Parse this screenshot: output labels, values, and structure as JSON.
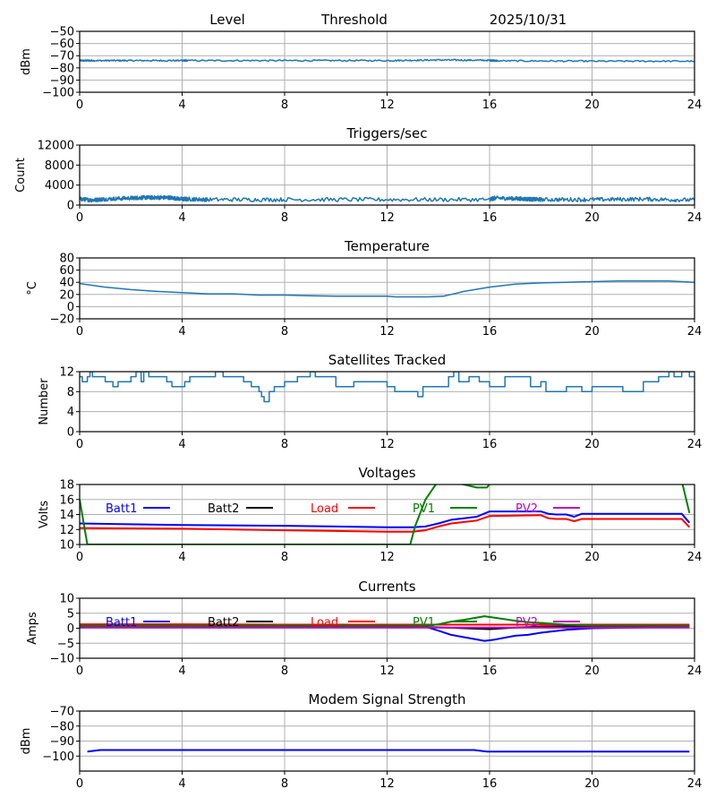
{
  "header": {
    "level_label": "Level",
    "threshold_label": "Threshold",
    "date": "2025/10/31"
  },
  "colors": {
    "series_default": "#1f77b4",
    "batt1": "#0000ff",
    "batt2": "#000000",
    "load": "#ff0000",
    "pv1": "#008000",
    "pv2": "#bf00bf",
    "grid": "#b0b0b0"
  },
  "chart_data": [
    {
      "id": "level",
      "type": "line",
      "title": "",
      "xlabel": "",
      "ylabel": "dBm",
      "xlim": [
        0,
        24
      ],
      "ylim": [
        -100,
        -50
      ],
      "xticks": [
        "0",
        "4",
        "8",
        "12",
        "16",
        "20",
        "24"
      ],
      "yticks": [
        {
          "v": -50,
          "label": "−50"
        },
        {
          "v": -60,
          "label": "−60"
        },
        {
          "v": -70,
          "label": "−70"
        },
        {
          "v": -80,
          "label": "−80"
        },
        {
          "v": -90,
          "label": "−90"
        },
        {
          "v": -100,
          "label": "−100"
        }
      ],
      "grid": true,
      "series": [
        {
          "name": "Level",
          "color_key": "series_default",
          "noise": 0.6,
          "x": [
            0,
            0.5,
            2,
            4,
            4.2,
            8,
            12,
            14,
            16,
            16.3,
            20,
            24
          ],
          "y": [
            -74,
            -74,
            -74,
            -74,
            -74,
            -74,
            -74,
            -73.5,
            -73.8,
            -74.2,
            -74.5,
            -74.5
          ]
        }
      ]
    },
    {
      "id": "triggers",
      "type": "line",
      "title": "Triggers/sec",
      "xlabel": "",
      "ylabel": "Count",
      "xlim": [
        0,
        24
      ],
      "ylim": [
        0,
        12000
      ],
      "xticks": [
        "0",
        "4",
        "8",
        "12",
        "16",
        "20",
        "24"
      ],
      "yticks": [
        {
          "v": 0,
          "label": "0"
        },
        {
          "v": 4000,
          "label": "4000"
        },
        {
          "v": 8000,
          "label": "8000"
        },
        {
          "v": 12000,
          "label": "12000"
        }
      ],
      "grid": true,
      "series": [
        {
          "name": "Triggers",
          "color_key": "series_default",
          "noise": 400,
          "x": [
            0,
            0.5,
            1,
            2,
            2.5,
            3,
            3.5,
            4,
            4.2,
            5,
            8,
            12,
            16,
            16.2,
            17,
            17.5,
            18,
            20,
            22,
            24
          ],
          "y": [
            1200,
            1000,
            1200,
            1400,
            1500,
            1500,
            1500,
            1200,
            1200,
            1100,
            1100,
            1100,
            1100,
            1400,
            1300,
            1200,
            1100,
            1100,
            1200,
            1000
          ]
        }
      ]
    },
    {
      "id": "temperature",
      "type": "line",
      "title": "Temperature",
      "xlabel": "",
      "ylabel": "°C",
      "xlim": [
        0,
        24
      ],
      "ylim": [
        -20,
        80
      ],
      "xticks": [
        "0",
        "4",
        "8",
        "12",
        "16",
        "20",
        "24"
      ],
      "yticks": [
        {
          "v": -20,
          "label": "−20"
        },
        {
          "v": 0,
          "label": "0"
        },
        {
          "v": 20,
          "label": "20"
        },
        {
          "v": 40,
          "label": "40"
        },
        {
          "v": 60,
          "label": "60"
        },
        {
          "v": 80,
          "label": "80"
        }
      ],
      "grid": true,
      "series": [
        {
          "name": "Temperature",
          "color_key": "series_default",
          "noise": 0,
          "x": [
            0,
            1,
            2,
            3,
            4,
            5,
            6,
            7,
            8,
            9,
            10,
            11,
            12,
            12.3,
            13,
            13.6,
            14.2,
            15,
            16,
            17,
            18,
            19,
            20,
            21,
            22,
            23,
            23.5,
            24
          ],
          "y": [
            38,
            32,
            28,
            25,
            23,
            21,
            21,
            19,
            19,
            18,
            17,
            17,
            17,
            16,
            16,
            16,
            17,
            25,
            32,
            37,
            39,
            40,
            41,
            42,
            42,
            42,
            41,
            40
          ]
        }
      ]
    },
    {
      "id": "satellites",
      "type": "line",
      "title": "Satellites Tracked",
      "xlabel": "",
      "ylabel": "Number",
      "xlim": [
        0,
        24
      ],
      "ylim": [
        0,
        12
      ],
      "xticks": [
        "0",
        "4",
        "8",
        "12",
        "16",
        "20",
        "24"
      ],
      "yticks": [
        {
          "v": 0,
          "label": "0"
        },
        {
          "v": 4,
          "label": "4"
        },
        {
          "v": 8,
          "label": "8"
        },
        {
          "v": 12,
          "label": "12"
        }
      ],
      "grid": true,
      "step": true,
      "series": [
        {
          "name": "Satellites",
          "color_key": "series_default",
          "noise": 0,
          "x": [
            0,
            0.1,
            0.3,
            0.4,
            0.5,
            1,
            1.3,
            1.5,
            1.7,
            2,
            2.2,
            2.4,
            2.5,
            2.7,
            3.4,
            3.6,
            4.1,
            4.3,
            4.6,
            5.0,
            5.3,
            5.6,
            6.0,
            6.4,
            6.7,
            7.0,
            7.1,
            7.2,
            7.4,
            7.6,
            8.0,
            8.5,
            9.0,
            9.2,
            9.6,
            10.0,
            10.7,
            11.2,
            12.0,
            12.3,
            13.0,
            13.2,
            13.4,
            14.0,
            14.4,
            14.6,
            14.8,
            15.2,
            15.6,
            16.0,
            16.6,
            17.2,
            17.6,
            18.0,
            18.2,
            19.0,
            19.6,
            20.0,
            20.5,
            21.2,
            22.0,
            22.4,
            22.6,
            23.0,
            23.2,
            23.5,
            23.8,
            24
          ],
          "y": [
            11,
            10,
            11,
            12,
            11,
            10,
            9,
            10,
            10,
            11,
            12,
            10,
            12,
            11,
            10,
            9,
            10,
            11,
            11,
            11,
            12,
            11,
            11,
            10,
            9,
            8,
            7,
            6,
            8,
            9,
            10,
            11,
            12,
            11,
            11,
            9,
            10,
            10,
            9,
            8,
            8,
            7,
            9,
            9,
            11,
            12,
            10,
            11,
            10,
            9,
            11,
            11,
            9,
            10,
            8,
            9,
            8,
            9,
            9,
            8,
            10,
            10,
            11,
            12,
            11,
            12,
            11,
            11
          ]
        }
      ]
    },
    {
      "id": "voltages",
      "type": "line",
      "title": "Voltages",
      "xlabel": "",
      "ylabel": "Volts",
      "xlim": [
        0,
        24
      ],
      "ylim": [
        10,
        18
      ],
      "xticks": [
        "0",
        "4",
        "8",
        "12",
        "16",
        "20",
        "24"
      ],
      "yticks": [
        {
          "v": 10,
          "label": "10"
        },
        {
          "v": 12,
          "label": "12"
        },
        {
          "v": 14,
          "label": "14"
        },
        {
          "v": 16,
          "label": "16"
        },
        {
          "v": 18,
          "label": "18"
        }
      ],
      "grid": true,
      "legend": "top",
      "series": [
        {
          "name": "Batt1",
          "color_key": "batt1",
          "x": [
            0,
            4,
            8,
            10,
            12,
            13,
            13.5,
            14,
            14.5,
            15,
            15.5,
            16,
            18,
            18.3,
            18.6,
            19,
            19.3,
            19.6,
            20,
            23.5,
            23.8
          ],
          "y": [
            12.8,
            12.6,
            12.5,
            12.4,
            12.3,
            12.3,
            12.4,
            12.8,
            13.3,
            13.5,
            13.7,
            14.4,
            14.4,
            14.1,
            14.0,
            14.0,
            13.7,
            14.1,
            14.1,
            14.1,
            12.9
          ]
        },
        {
          "name": "Batt2",
          "color_key": "batt2",
          "x": [],
          "y": []
        },
        {
          "name": "Load",
          "color_key": "load",
          "x": [
            0,
            4,
            8,
            10,
            12,
            13,
            13.5,
            14,
            14.5,
            15,
            15.5,
            16,
            18,
            18.3,
            18.6,
            19,
            19.3,
            19.6,
            20,
            23.5,
            23.8
          ],
          "y": [
            12.2,
            12.1,
            11.9,
            11.8,
            11.7,
            11.7,
            11.9,
            12.4,
            12.8,
            13.0,
            13.2,
            13.8,
            13.9,
            13.5,
            13.4,
            13.4,
            13.1,
            13.4,
            13.4,
            13.4,
            12.3
          ]
        },
        {
          "name": "PV1",
          "color_key": "pv1",
          "x": [
            0,
            0.3,
            12.9,
            13.1,
            13.5,
            13.8,
            14,
            15,
            15.5,
            15.9,
            16.1,
            23.5,
            23.8
          ],
          "y": [
            16,
            10,
            10,
            12.5,
            16,
            17.5,
            18.5,
            18,
            17.6,
            17.6,
            18.5,
            18.5,
            14.2
          ]
        },
        {
          "name": "PV2",
          "color_key": "pv2",
          "x": [],
          "y": []
        }
      ]
    },
    {
      "id": "currents",
      "type": "line",
      "title": "Currents",
      "xlabel": "",
      "ylabel": "Amps",
      "xlim": [
        0,
        24
      ],
      "ylim": [
        -10,
        10
      ],
      "xticks": [
        "0",
        "4",
        "8",
        "12",
        "16",
        "20",
        "24"
      ],
      "yticks": [
        {
          "v": -10,
          "label": "−10"
        },
        {
          "v": -5,
          "label": "−5"
        },
        {
          "v": 0,
          "label": "0"
        },
        {
          "v": 5,
          "label": "5"
        },
        {
          "v": 10,
          "label": "10"
        }
      ],
      "grid": true,
      "legend": "top",
      "series": [
        {
          "name": "Batt1",
          "color_key": "batt1",
          "x": [
            0,
            4,
            8,
            12,
            13.5,
            14,
            14.5,
            15,
            15.8,
            16.2,
            17,
            17.5,
            18,
            19,
            20,
            23.8
          ],
          "y": [
            0.5,
            0.5,
            0.5,
            0.5,
            0.5,
            -0.8,
            -2.2,
            -3,
            -4.2,
            -3.8,
            -2.5,
            -2.2,
            -1.5,
            -0.5,
            0,
            0.5
          ]
        },
        {
          "name": "Batt2",
          "color_key": "batt2",
          "x": [
            0,
            4,
            8,
            12,
            13,
            14,
            15,
            16,
            17,
            18,
            20,
            23.8
          ],
          "y": [
            0.8,
            0.8,
            0.8,
            0.8,
            0.5,
            0.3,
            0,
            -0.3,
            0.2,
            0.5,
            0.7,
            0.8
          ]
        },
        {
          "name": "Load",
          "color_key": "load",
          "x": [
            0,
            4,
            8,
            12,
            16,
            20,
            23.8
          ],
          "y": [
            1.3,
            1.3,
            1.2,
            1.2,
            1.2,
            1.2,
            1.2
          ]
        },
        {
          "name": "PV1",
          "color_key": "pv1",
          "x": [
            0,
            4,
            8,
            12,
            13.5,
            14,
            14.5,
            15,
            15.8,
            16.2,
            17,
            17.5,
            18,
            19,
            20,
            23.8
          ],
          "y": [
            0.8,
            0.8,
            0.8,
            0.8,
            0.8,
            1.3,
            2.2,
            2.8,
            4,
            3.5,
            2.5,
            2.0,
            1.8,
            1.2,
            0.9,
            0.8
          ]
        },
        {
          "name": "PV2",
          "color_key": "pv2",
          "x": [
            0,
            4,
            8,
            12,
            16,
            20,
            23.8
          ],
          "y": [
            0.2,
            0.2,
            0.2,
            0.2,
            0.2,
            0.2,
            0.2
          ]
        }
      ]
    },
    {
      "id": "modem",
      "type": "line",
      "title": "Modem Signal Strength",
      "xlabel": "",
      "ylabel": "dBm",
      "xlim": [
        0,
        24
      ],
      "ylim": [
        -110,
        -70
      ],
      "xticks": [
        "0",
        "4",
        "8",
        "12",
        "16",
        "20",
        "24"
      ],
      "yticks": [
        {
          "v": -70,
          "label": "−70"
        },
        {
          "v": -80,
          "label": "−80"
        },
        {
          "v": -90,
          "label": "−90"
        },
        {
          "v": -100,
          "label": "−100"
        }
      ],
      "grid": true,
      "series": [
        {
          "name": "Modem",
          "color_key": "batt1",
          "x": [
            0.3,
            0.8,
            4,
            8,
            12,
            15.4,
            15.9,
            20,
            23.8
          ],
          "y": [
            -97,
            -96,
            -96,
            -96,
            -96,
            -96,
            -97,
            -97,
            -97
          ]
        }
      ]
    }
  ]
}
